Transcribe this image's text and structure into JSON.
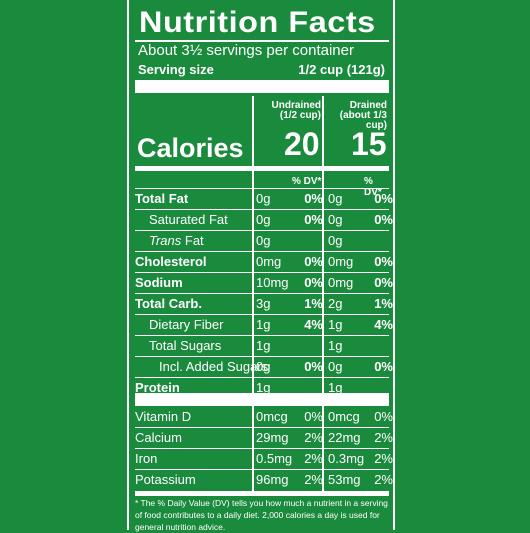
{
  "label": {
    "title": "Nutrition Facts",
    "servings": "About 3½ servings per container",
    "serving_size_label": "Serving size",
    "serving_size_value": "1/2 cup (121g)",
    "col1_head_1": "Undrained",
    "col1_head_2": "(1/2 cup)",
    "col2_head_1": "Drained",
    "col2_head_2": "(about 1/3 cup)",
    "calories_label": "Calories",
    "calories_1": "20",
    "calories_2": "15",
    "dv_label_1": "% DV*",
    "dv_label_2": "% DV*",
    "rows": [
      {
        "label": "Total Fat",
        "a": "0g",
        "ap": "0%",
        "b": "0g",
        "bp": "0%"
      },
      {
        "label": "Saturated Fat",
        "a": "0g",
        "ap": "0%",
        "b": "0g",
        "bp": "0%"
      },
      {
        "label": "Trans",
        "label_suffix": " Fat",
        "a": "0g",
        "ap": "",
        "b": "0g",
        "bp": ""
      },
      {
        "label": "Cholesterol",
        "a": "0mg",
        "ap": "0%",
        "b": "0mg",
        "bp": "0%"
      },
      {
        "label": "Sodium",
        "a": "10mg",
        "ap": "0%",
        "b": "0mg",
        "bp": "0%"
      },
      {
        "label": "Total Carb.",
        "a": "3g",
        "ap": "1%",
        "b": "2g",
        "bp": "1%"
      },
      {
        "label": "Dietary Fiber",
        "a": "1g",
        "ap": "4%",
        "b": "1g",
        "bp": "4%"
      },
      {
        "label": "Total Sugars",
        "a": "1g",
        "ap": "",
        "b": "1g",
        "bp": ""
      },
      {
        "label": "Incl. Added Sugars",
        "a": "0g",
        "ap": "0%",
        "b": "0g",
        "bp": "0%"
      },
      {
        "label": "Protein",
        "a": "1g",
        "ap": "",
        "b": "1g",
        "bp": ""
      }
    ],
    "vitamins": [
      {
        "label": "Vitamin D",
        "a": "0mcg",
        "ap": "0%",
        "b": "0mcg",
        "bp": "0%"
      },
      {
        "label": "Calcium",
        "a": "29mg",
        "ap": "2%",
        "b": "22mg",
        "bp": "2%"
      },
      {
        "label": "Iron",
        "a": "0.5mg",
        "ap": "2%",
        "b": "0.3mg",
        "bp": "2%"
      },
      {
        "label": "Potassium",
        "a": "96mg",
        "ap": "2%",
        "b": "53mg",
        "bp": "2%"
      }
    ],
    "footnote": "* The % Daily Value (DV) tells you how much a nutrient in a serving of food contributes to a daily diet. 2,000 calories a day is used for general nutrition advice."
  },
  "colors": {
    "background": "#1a8a3d",
    "text": "#ffffff"
  }
}
